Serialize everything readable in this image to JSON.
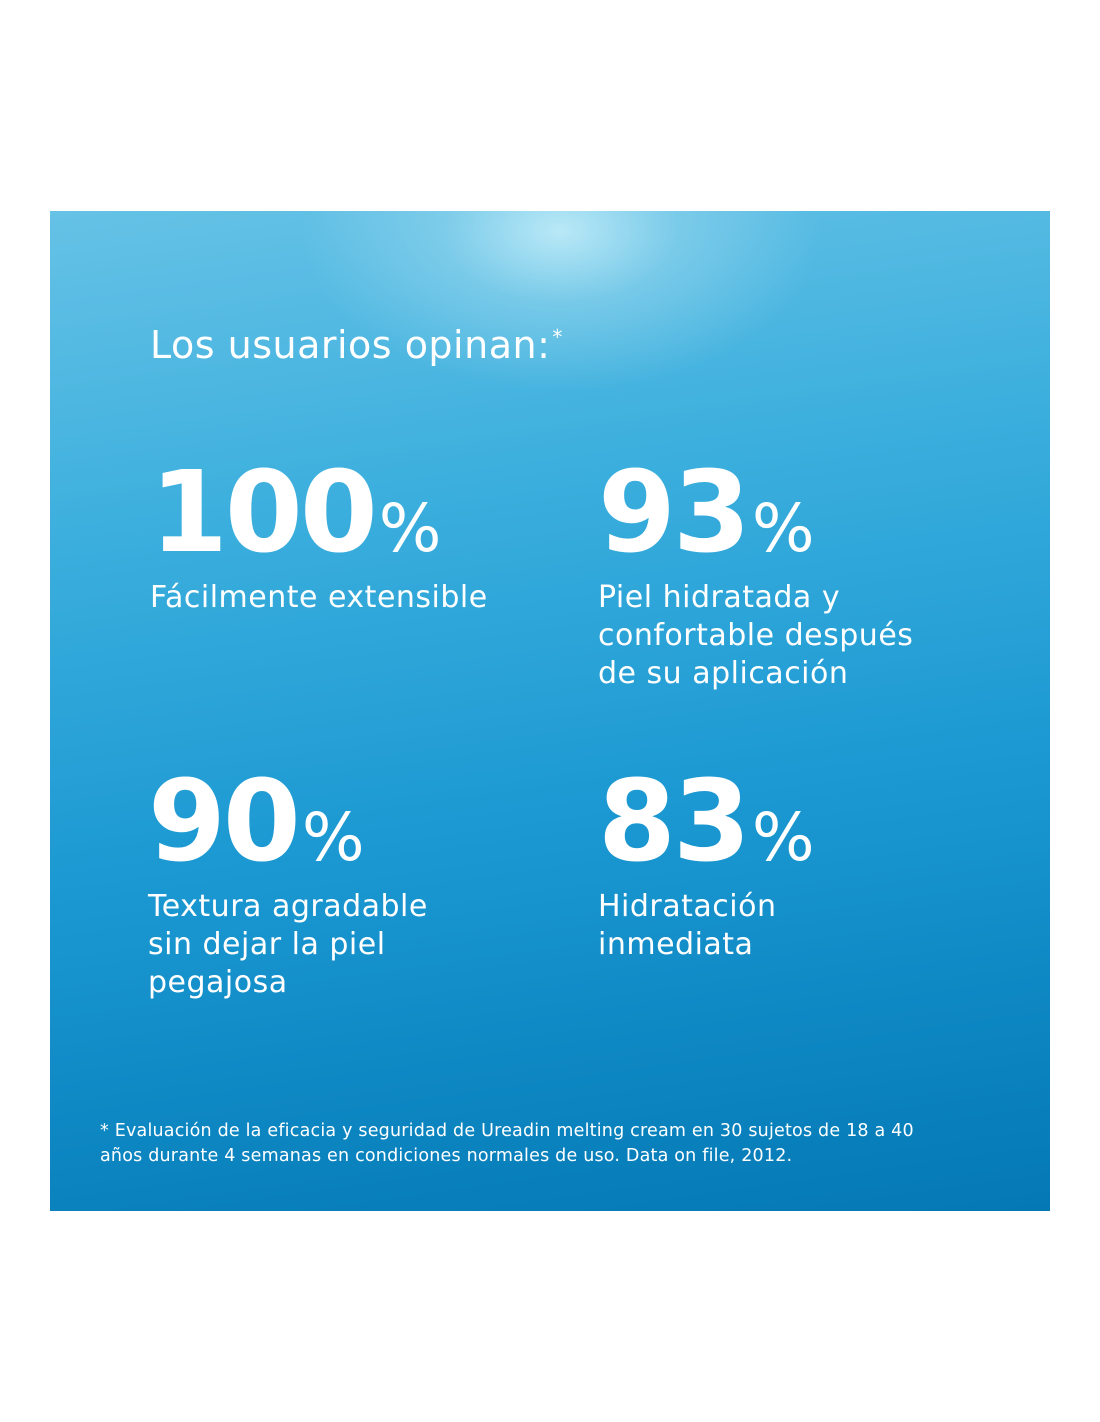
{
  "headline": {
    "text": "Los usuarios opinan:",
    "marker": "*"
  },
  "stats": [
    {
      "value": "100",
      "unit": "%",
      "description": "Fácilmente extensible"
    },
    {
      "value": "93",
      "unit": "%",
      "description": "Piel hidratada y\nconfortable después\nde su aplicación"
    },
    {
      "value": "90",
      "unit": "%",
      "description": "Textura agradable\nsin dejar la piel\npegajosa"
    },
    {
      "value": "83",
      "unit": "%",
      "description": "Hidratación\ninmediata"
    }
  ],
  "footnote": "* Evaluación de la eficacia y seguridad de Ureadin melting cream en 30 sujetos de 18 a 40\naños durante 4 semanas en condiciones normales de uso. Data  on file, 2012.",
  "colors": {
    "panel_top": "#66c2e6",
    "panel_bottom": "#0478b4",
    "text": "#ffffff"
  }
}
